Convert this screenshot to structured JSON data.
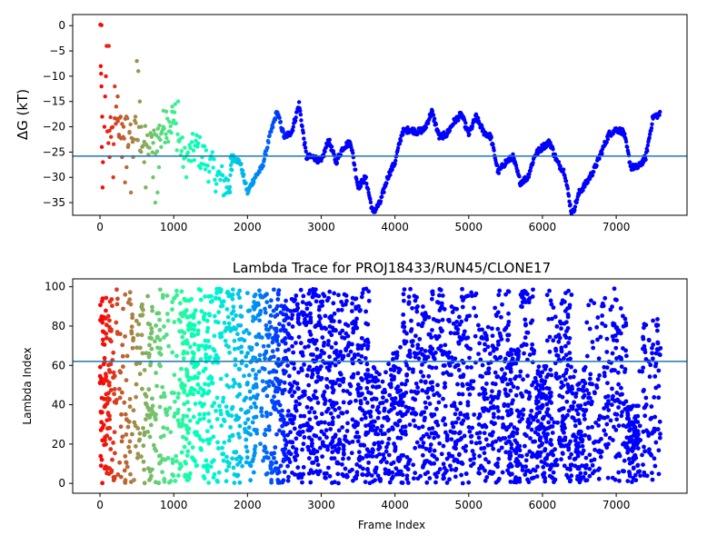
{
  "chart_data": [
    {
      "type": "scatter",
      "title": "",
      "xlabel": "",
      "ylabel_symbol": "ΔG",
      "ylabel_unit": " (kT)",
      "xlim": [
        -370,
        7960
      ],
      "ylim": [
        -37.5,
        2.2
      ],
      "xticks": [
        0,
        1000,
        2000,
        3000,
        4000,
        5000,
        6000,
        7000
      ],
      "yticks": [
        0,
        -5,
        -10,
        -15,
        -20,
        -25,
        -30,
        -35
      ],
      "hline": -25.8,
      "hline_color": "#1f77b4",
      "colormap": "rainbow",
      "marker_size": 2.2,
      "trace_keypoints": [
        [
          100,
          -22
        ],
        [
          300,
          -20
        ],
        [
          500,
          -22
        ],
        [
          700,
          -24
        ],
        [
          850,
          -20
        ],
        [
          1000,
          -19
        ],
        [
          1150,
          -27
        ],
        [
          1300,
          -24
        ],
        [
          1450,
          -27
        ],
        [
          1600,
          -30
        ],
        [
          1750,
          -32
        ],
        [
          1800,
          -26
        ],
        [
          1900,
          -27
        ],
        [
          2000,
          -33
        ],
        [
          2100,
          -30
        ],
        [
          2200,
          -28
        ],
        [
          2300,
          -22
        ],
        [
          2400,
          -17
        ],
        [
          2500,
          -22
        ],
        [
          2600,
          -21
        ],
        [
          2700,
          -15.5
        ],
        [
          2800,
          -26
        ],
        [
          2900,
          -26
        ],
        [
          3000,
          -27
        ],
        [
          3100,
          -22.5
        ],
        [
          3200,
          -27
        ],
        [
          3300,
          -24
        ],
        [
          3400,
          -23
        ],
        [
          3500,
          -32
        ],
        [
          3600,
          -30
        ],
        [
          3700,
          -37
        ],
        [
          3800,
          -35
        ],
        [
          3900,
          -30
        ],
        [
          4000,
          -27
        ],
        [
          4100,
          -21
        ],
        [
          4200,
          -20.5
        ],
        [
          4300,
          -21
        ],
        [
          4400,
          -20.5
        ],
        [
          4500,
          -17
        ],
        [
          4600,
          -22
        ],
        [
          4700,
          -21.5
        ],
        [
          4800,
          -19
        ],
        [
          4900,
          -17.5
        ],
        [
          5000,
          -21.5
        ],
        [
          5100,
          -18
        ],
        [
          5200,
          -21
        ],
        [
          5300,
          -22
        ],
        [
          5400,
          -29
        ],
        [
          5500,
          -27
        ],
        [
          5600,
          -26
        ],
        [
          5700,
          -31
        ],
        [
          5800,
          -30
        ],
        [
          5900,
          -25.5
        ],
        [
          6000,
          -24
        ],
        [
          6100,
          -23
        ],
        [
          6200,
          -27
        ],
        [
          6300,
          -29
        ],
        [
          6400,
          -37.5
        ],
        [
          6500,
          -33
        ],
        [
          6600,
          -31
        ],
        [
          6700,
          -28.5
        ],
        [
          6800,
          -25
        ],
        [
          6900,
          -21.5
        ],
        [
          7000,
          -20.5
        ],
        [
          7100,
          -21
        ],
        [
          7200,
          -28
        ],
        [
          7300,
          -28
        ],
        [
          7400,
          -26
        ],
        [
          7500,
          -18
        ],
        [
          7600,
          -17.5
        ]
      ],
      "early_points": [
        [
          5,
          0.2
        ],
        [
          20,
          0.1
        ],
        [
          10,
          -8
        ],
        [
          15,
          -9.5
        ],
        [
          20,
          -12
        ],
        [
          30,
          -18
        ],
        [
          25,
          -24
        ],
        [
          40,
          -27
        ],
        [
          35,
          -32
        ],
        [
          60,
          -20
        ],
        [
          80,
          -10
        ],
        [
          90,
          -4
        ],
        [
          120,
          -4
        ],
        [
          70,
          -14
        ],
        [
          130,
          -26
        ],
        [
          150,
          -22
        ],
        [
          180,
          -30
        ],
        [
          200,
          -12
        ],
        [
          220,
          -16
        ],
        [
          240,
          -14
        ],
        [
          260,
          -22
        ],
        [
          280,
          -18
        ],
        [
          300,
          -26
        ],
        [
          320,
          -20
        ],
        [
          340,
          -31
        ],
        [
          360,
          -28
        ],
        [
          380,
          -24
        ],
        [
          400,
          -21
        ],
        [
          420,
          -33
        ],
        [
          450,
          -26
        ],
        [
          480,
          -18
        ],
        [
          500,
          -7
        ],
        [
          520,
          -9
        ],
        [
          540,
          -15
        ],
        [
          560,
          -20
        ],
        [
          600,
          -27
        ],
        [
          620,
          -32
        ],
        [
          650,
          -24
        ],
        [
          700,
          -22
        ],
        [
          720,
          -30
        ],
        [
          750,
          -35
        ],
        [
          780,
          -33
        ],
        [
          800,
          -28
        ],
        [
          830,
          -24
        ],
        [
          860,
          -20
        ],
        [
          900,
          -17
        ],
        [
          940,
          -19
        ],
        [
          980,
          -16
        ],
        [
          1020,
          -15.5
        ],
        [
          1060,
          -15
        ]
      ]
    },
    {
      "type": "scatter",
      "title": "Lambda Trace for PROJ18433/RUN45/CLONE17",
      "xlabel": "Frame Index",
      "ylabel": "Lambda Index",
      "xlim": [
        -370,
        7960
      ],
      "ylim": [
        -5,
        104
      ],
      "xticks": [
        0,
        1000,
        2000,
        3000,
        4000,
        5000,
        6000,
        7000
      ],
      "yticks": [
        0,
        20,
        40,
        60,
        80,
        100
      ],
      "hline": 62,
      "hline_color": "#1f77b4",
      "colormap": "rainbow",
      "marker_size": 2.4,
      "x_max": 7600,
      "point_count": 3400,
      "bands": [
        [
          0,
          140,
          0,
          98
        ],
        [
          140,
          460,
          0,
          99
        ],
        [
          460,
          760,
          0,
          99
        ],
        [
          760,
          1100,
          0,
          99
        ],
        [
          1100,
          1250,
          0,
          99
        ],
        [
          1250,
          1460,
          0,
          99
        ],
        [
          1460,
          1700,
          0,
          99
        ],
        [
          1700,
          1900,
          0,
          99
        ],
        [
          1900,
          2120,
          0,
          99
        ],
        [
          2120,
          2330,
          0,
          99
        ],
        [
          2330,
          2480,
          0,
          99
        ],
        [
          2480,
          2620,
          0,
          94
        ],
        [
          2620,
          2820,
          0,
          99
        ],
        [
          2820,
          2950,
          0,
          99
        ],
        [
          2950,
          3130,
          0,
          98
        ],
        [
          3130,
          3300,
          0,
          97
        ],
        [
          3300,
          3500,
          0,
          99
        ],
        [
          3500,
          3650,
          0,
          99
        ],
        [
          3650,
          3900,
          0,
          60
        ],
        [
          3900,
          4100,
          0,
          70
        ],
        [
          4100,
          4300,
          0,
          99
        ],
        [
          4300,
          4500,
          0,
          90
        ],
        [
          4500,
          4700,
          0,
          99
        ],
        [
          4700,
          4900,
          0,
          90
        ],
        [
          4900,
          5150,
          0,
          99
        ],
        [
          5150,
          5350,
          0,
          80
        ],
        [
          5350,
          5550,
          0,
          99
        ],
        [
          5550,
          5700,
          0,
          70
        ],
        [
          5700,
          5900,
          0,
          99
        ],
        [
          5900,
          6050,
          0,
          60
        ],
        [
          6050,
          6250,
          0,
          99
        ],
        [
          6250,
          6400,
          0,
          99
        ],
        [
          6400,
          6600,
          0,
          60
        ],
        [
          6600,
          6900,
          0,
          95
        ],
        [
          6900,
          7150,
          0,
          99
        ],
        [
          7150,
          7300,
          0,
          40
        ],
        [
          7300,
          7600,
          0,
          84
        ]
      ]
    }
  ]
}
